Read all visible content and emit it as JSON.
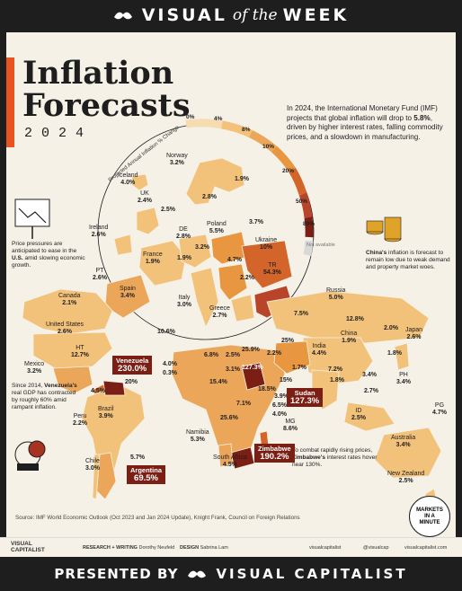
{
  "header": {
    "left": "VISUAL",
    "mid": "of the",
    "right": "WEEK"
  },
  "title": {
    "line1": "Inflation",
    "line2": "Forecasts",
    "year": "2024"
  },
  "intro": {
    "p1": "In 2024, the International Monetary Fund (IMF) projects that global inflation will drop to ",
    "hl": "5.8%",
    "p2": ", driven by higher interest rates, falling commodity prices, and a slowdown in manufacturing."
  },
  "scale": {
    "title": "Projected Annual Inflation % Change",
    "ticks": [
      "0%",
      "4%",
      "8%",
      "10%",
      "20%",
      "50%",
      "80%"
    ],
    "na": "Not available"
  },
  "annotations": {
    "us": {
      "a": "Price pressures are anticipated to ease in the ",
      "b": "U.S.",
      "c": " amid slowing economic growth."
    },
    "china": {
      "a": "China's",
      "b": " inflation is forecast to remain low due to weak demand and property market woes."
    },
    "venezuela": {
      "a": "Since 2014, ",
      "b": "Venezuela's",
      "c": " real GDP has contracted by roughly 60% amid rampant inflation."
    },
    "zimbabwe": {
      "a": "To combat rapidly rising prices, ",
      "b": "Zimbabwe's",
      "c": " interest rates hover near 130%."
    }
  },
  "countries": [
    {
      "name": "Norway",
      "value": "3.2%"
    },
    {
      "name": "Iceland",
      "value": "4.0%"
    },
    {
      "name": "UK",
      "value": "2.4%"
    },
    {
      "name": "Ireland",
      "value": "2.6%"
    },
    {
      "name": "DE",
      "value": "2.8%"
    },
    {
      "name": "Poland",
      "value": "5.5%"
    },
    {
      "name": "Ukraine",
      "value": "10%"
    },
    {
      "name": "France",
      "value": "1.9%"
    },
    {
      "name": "PT",
      "value": "2.6%"
    },
    {
      "name": "Spain",
      "value": "3.4%"
    },
    {
      "name": "Italy",
      "value": "3.0%"
    },
    {
      "name": "Greece",
      "value": "2.7%"
    },
    {
      "name": "TR",
      "value": "54.3%"
    },
    {
      "name": "Russia",
      "value": "5.0%"
    },
    {
      "name": "Canada",
      "value": "2.1%"
    },
    {
      "name": "United States",
      "value": "2.6%"
    },
    {
      "name": "Mexico",
      "value": "3.2%"
    },
    {
      "name": "HT",
      "value": "12.7%"
    },
    {
      "name": "Peru",
      "value": "2.2%"
    },
    {
      "name": "Brazil",
      "value": "3.9%"
    },
    {
      "name": "Chile",
      "value": "3.0%"
    },
    {
      "name": "Namibia",
      "value": "5.3%"
    },
    {
      "name": "South Africa",
      "value": "4.5%"
    },
    {
      "name": "MG",
      "value": "8.6%"
    },
    {
      "name": "India",
      "value": "4.4%"
    },
    {
      "name": "China",
      "value": "1.9%"
    },
    {
      "name": "Japan",
      "value": "2.6%"
    },
    {
      "name": "PH",
      "value": "3.4%"
    },
    {
      "name": "ID",
      "value": "2.5%"
    },
    {
      "name": "Australia",
      "value": "3.4%"
    },
    {
      "name": "New Zealand",
      "value": "2.5%"
    },
    {
      "name": "PG",
      "value": "4.7%"
    }
  ],
  "loose_values": [
    "2.8%",
    "1.9%",
    "2.5%",
    "3.7%",
    "3.2%",
    "1.9%",
    "4.7%",
    "2.2%",
    "10.6%",
    "7.5%",
    "12.8%",
    "25%",
    "2.0%",
    "1.8%",
    "6.8%",
    "2.5%",
    "25.9%",
    "2.2%",
    "3.1%",
    "127.3%",
    "1.7%",
    "15%",
    "7.2%",
    "1.8%",
    "3.4%",
    "2.7%",
    "15.4%",
    "18.5%",
    "7.1%",
    "3.9%",
    "6.5%",
    "4.0%",
    "25.6%",
    "4.0%",
    "0.3%",
    "20%",
    "4.5%",
    "5.7%"
  ],
  "highlight": [
    {
      "name": "Venezuela",
      "value": "230.0%"
    },
    {
      "name": "Sudan",
      "value": "127.3%"
    },
    {
      "name": "Zimbabwe",
      "value": "190.2%"
    },
    {
      "name": "Argentina",
      "value": "69.5%"
    }
  ],
  "source": "Source: IMF World Economic Outlook (Oct 2023 and Jan 2024 Update), Knight Frank, Council on Foreign Relations",
  "markets": {
    "l1": "MARKETS",
    "l2": "IN A",
    "l3": "MINUTE"
  },
  "footer": {
    "brand1": "VISUAL",
    "brand2": "CAPITALIST",
    "research": "RESEARCH + WRITING",
    "research_name": "Dorothy Neufeld",
    "design": "DESIGN",
    "design_name": "Sabrina Lam",
    "handle": "visualcapitalist",
    "handle2": "@visualcap",
    "site": "visualcapitalist.com"
  },
  "presented": {
    "a": "PRESENTED BY",
    "b": "VISUAL CAPITALIST"
  },
  "colors": {
    "bg": "#f6f1e7",
    "land_light": "#f3c27a",
    "land_mid": "#e8963f",
    "land_dark": "#d3642a",
    "red": "#a83321",
    "maroon": "#7b1e14",
    "accent": "#e8531f"
  }
}
